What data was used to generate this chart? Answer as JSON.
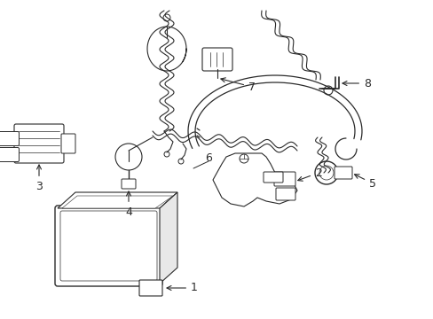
{
  "background_color": "#ffffff",
  "line_color": "#2a2a2a",
  "label_color": "#000000",
  "figsize": [
    4.89,
    3.6
  ],
  "dpi": 100,
  "lw": 0.9
}
